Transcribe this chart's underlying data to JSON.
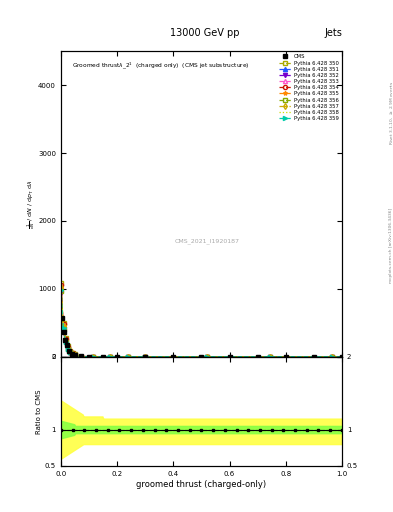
{
  "title_top": "13000 GeV pp",
  "title_right": "Jets",
  "plot_title": "Groomed thrust$\\lambda$_2$^1$  (charged only)  (CMS jet substructure)",
  "watermark": "CMS_2021_I1920187",
  "xlabel": "groomed thrust (charged-only)",
  "ylabel_main": "$\\frac{1}{\\mathrm{d}N}$ / $\\mathrm{d}N$ / $\\mathrm{d}p_\\mathrm{T}$ $\\mathrm{d}\\lambda$",
  "ylabel_ratio": "Ratio to CMS",
  "right_label": "mcplots.cern.ch [arXiv:1306.3436]",
  "right_label2": "Rivet 3.1.10, $\\geq$ 2.9M events",
  "pythia_labels": [
    "Pythia 6.428 350",
    "Pythia 6.428 351",
    "Pythia 6.428 352",
    "Pythia 6.428 353",
    "Pythia 6.428 354",
    "Pythia 6.428 355",
    "Pythia 6.428 356",
    "Pythia 6.428 357",
    "Pythia 6.428 358",
    "Pythia 6.428 359"
  ],
  "pythia_colors": [
    "#aaaa00",
    "#2255ff",
    "#7700cc",
    "#ff55cc",
    "#cc1100",
    "#ff8800",
    "#88aa00",
    "#ccaa00",
    "#ccdd00",
    "#00ccaa"
  ],
  "pythia_markers": [
    "s",
    "^",
    "v",
    "^",
    "o",
    "*",
    "s",
    "d",
    "None",
    ">"
  ],
  "pythia_mfc": [
    "none",
    "#2255ff",
    "#7700cc",
    "none",
    "none",
    "#ff8800",
    "none",
    "none",
    "none",
    "#00ccaa"
  ],
  "pythia_ls": [
    "--",
    "--",
    "--",
    "--",
    "--",
    "--",
    "--",
    "-.",
    "dotted",
    "--"
  ],
  "ylim_main": [
    0,
    4500
  ],
  "ylim_ratio": [
    0.5,
    2.0
  ],
  "xlim": [
    0,
    1
  ],
  "yticks_main": [
    0,
    1000,
    2000,
    3000,
    4000
  ],
  "ratio_yticks": [
    0.5,
    1.0,
    2.0
  ],
  "background_color": "#ffffff"
}
